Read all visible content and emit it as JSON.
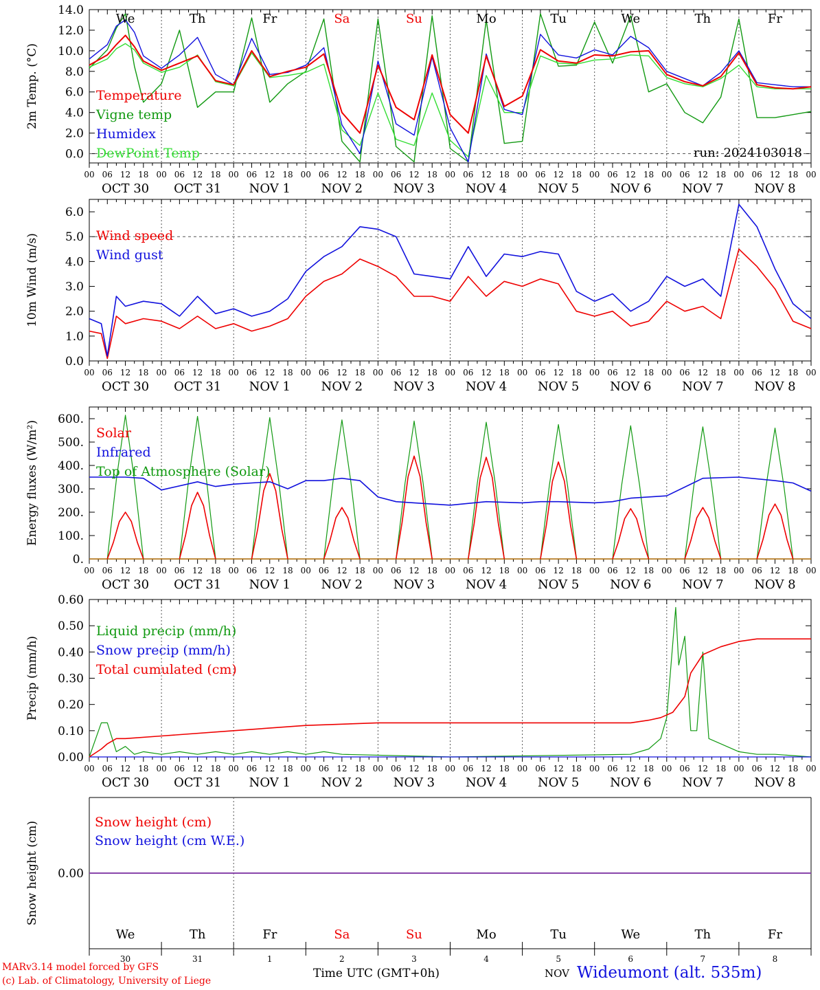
{
  "colors": {
    "red": "#ee0000",
    "green": "#119911",
    "blue": "#1111dd",
    "lightgreen": "#33dd33",
    "purple": "#8844aa",
    "grid": "#555555"
  },
  "days": [
    "We",
    "Th",
    "Fr",
    "Sa",
    "Su",
    "Mo",
    "Tu",
    "We",
    "Th",
    "Fr"
  ],
  "dates": [
    "OCT 30",
    "OCT 31",
    "NOV  1",
    "NOV  2",
    "NOV  3",
    "NOV  4",
    "NOV  5",
    "NOV  6",
    "NOV  7",
    "NOV  8"
  ],
  "hour_labels": [
    "00",
    "06",
    "12",
    "18"
  ],
  "last_hour_label": "00",
  "day_numbers": [
    "30",
    "31",
    "1",
    "2",
    "3",
    "4",
    "5",
    "6",
    "7",
    "8"
  ],
  "month_tag": "NOV",
  "footer": {
    "model": "MARv3.14 model forced by GFS",
    "copyright": "(c) Lab. of Climatology, University of Liege",
    "time_axis": "Time UTC (GMT+0h)",
    "station": "Wideumont (alt. 535m)"
  },
  "run_label": "run: 2024103018",
  "chart_data": [
    {
      "type": "line",
      "ylabel": "2m Temp. (°C)",
      "ylim": [
        -0.9,
        14.0
      ],
      "yticks": [
        "0.0",
        "2.0",
        "4.0",
        "6.0",
        "8.0",
        "10.0",
        "12.0",
        "14.0"
      ],
      "ytick_values": [
        0,
        2,
        4,
        6,
        8,
        10,
        12,
        14
      ],
      "reference_line": 0,
      "x_hours": [
        0,
        6,
        9,
        12,
        15,
        18,
        24,
        30,
        36,
        42,
        48,
        54,
        60,
        66,
        72,
        78,
        84,
        90,
        96,
        102,
        108,
        114,
        120,
        126,
        132,
        138,
        144,
        150,
        156,
        162,
        168,
        174,
        180,
        186,
        192,
        198,
        204,
        210,
        216,
        222,
        228,
        234,
        240
      ],
      "series": [
        {
          "name": "Temperature",
          "color": "red",
          "values": [
            8.6,
            9.6,
            10.6,
            11.5,
            10.4,
            9.0,
            8.1,
            8.8,
            9.5,
            7.1,
            6.7,
            10.0,
            7.5,
            8.0,
            8.4,
            9.7,
            4.0,
            2.0,
            8.6,
            4.5,
            3.3,
            9.6,
            3.8,
            2.0,
            9.5,
            4.6,
            5.6,
            10.1,
            9.0,
            8.8,
            9.6,
            9.5,
            9.9,
            10.0,
            7.7,
            7.0,
            6.6,
            7.5,
            9.8,
            6.7,
            6.4,
            6.3,
            6.5
          ]
        },
        {
          "name": "Vigne temp",
          "color": "green",
          "values": [
            8.3,
            10.1,
            12.2,
            13.6,
            8.5,
            5.0,
            6.8,
            12.0,
            4.5,
            6.0,
            6.0,
            13.2,
            5.0,
            6.8,
            8.0,
            13.1,
            1.2,
            -0.8,
            13.1,
            0.7,
            -0.8,
            13.4,
            0.5,
            -0.8,
            13.0,
            1.0,
            1.2,
            13.6,
            8.5,
            8.6,
            12.8,
            8.8,
            13.4,
            6.0,
            6.8,
            4.0,
            3.0,
            5.5,
            13.1,
            3.5,
            3.5,
            3.8,
            4.1
          ]
        },
        {
          "name": "Humidex",
          "color": "blue",
          "values": [
            9.2,
            10.6,
            12.4,
            13.0,
            11.8,
            9.5,
            8.3,
            9.6,
            11.3,
            7.7,
            6.7,
            11.2,
            7.7,
            7.9,
            8.6,
            10.3,
            2.8,
            0.0,
            9.0,
            2.9,
            1.8,
            9.4,
            2.5,
            -0.8,
            9.7,
            4.3,
            3.8,
            11.6,
            9.6,
            9.3,
            10.1,
            9.6,
            11.4,
            10.3,
            8.0,
            7.3,
            6.6,
            7.9,
            10.0,
            6.9,
            6.7,
            6.5,
            6.5
          ]
        },
        {
          "name": "DewPoint Temp",
          "color": "lightgreen",
          "values": [
            8.4,
            9.2,
            10.2,
            10.7,
            10.1,
            8.8,
            7.9,
            8.4,
            9.6,
            7.0,
            6.6,
            9.8,
            7.4,
            7.6,
            7.9,
            8.7,
            2.3,
            0.8,
            5.9,
            1.4,
            0.8,
            5.9,
            1.3,
            -0.3,
            7.6,
            4.0,
            4.0,
            9.5,
            8.8,
            8.7,
            9.1,
            9.2,
            9.6,
            9.5,
            7.4,
            6.8,
            6.5,
            7.3,
            8.6,
            6.5,
            6.3,
            6.3,
            6.3
          ]
        }
      ]
    },
    {
      "type": "line",
      "ylabel": "10m Wind (m/s)",
      "ylim": [
        0,
        6.5
      ],
      "yticks": [
        "0.0",
        "1.0",
        "2.0",
        "3.0",
        "4.0",
        "5.0",
        "6.0"
      ],
      "ytick_values": [
        0,
        1,
        2,
        3,
        4,
        5,
        6
      ],
      "reference_line": 5,
      "x_hours": [
        0,
        4,
        6,
        9,
        12,
        18,
        24,
        30,
        36,
        42,
        48,
        54,
        60,
        66,
        72,
        78,
        84,
        90,
        96,
        102,
        108,
        114,
        120,
        126,
        132,
        138,
        144,
        150,
        156,
        162,
        168,
        174,
        180,
        186,
        192,
        198,
        204,
        210,
        216,
        222,
        228,
        234,
        240
      ],
      "series": [
        {
          "name": "Wind speed",
          "color": "red",
          "values": [
            1.2,
            1.1,
            0.1,
            1.8,
            1.5,
            1.7,
            1.6,
            1.3,
            1.8,
            1.3,
            1.5,
            1.2,
            1.4,
            1.7,
            2.6,
            3.2,
            3.5,
            4.1,
            3.8,
            3.4,
            2.6,
            2.6,
            2.4,
            3.4,
            2.6,
            3.2,
            3.0,
            3.3,
            3.1,
            2.0,
            1.8,
            2.0,
            1.4,
            1.6,
            2.4,
            2.0,
            2.2,
            1.7,
            4.5,
            3.8,
            2.9,
            1.6,
            1.3
          ]
        },
        {
          "name": "Wind gust",
          "color": "blue",
          "values": [
            1.7,
            1.5,
            0.2,
            2.6,
            2.2,
            2.4,
            2.3,
            1.8,
            2.6,
            1.9,
            2.1,
            1.8,
            2.0,
            2.5,
            3.6,
            4.2,
            4.6,
            5.4,
            5.3,
            5.0,
            3.5,
            3.4,
            3.3,
            4.6,
            3.4,
            4.3,
            4.2,
            4.4,
            4.3,
            2.8,
            2.4,
            2.7,
            2.0,
            2.4,
            3.4,
            3.0,
            3.3,
            2.6,
            6.3,
            5.4,
            3.7,
            2.3,
            1.7
          ]
        }
      ]
    },
    {
      "type": "line",
      "ylabel": "Energy fluxes (W/m²)",
      "ylim": [
        0,
        650
      ],
      "yticks": [
        "0.",
        "100.",
        "200.",
        "300.",
        "400.",
        "500.",
        "600."
      ],
      "ytick_values": [
        0,
        100,
        200,
        300,
        400,
        500,
        600
      ],
      "series": [
        {
          "name": "Solar",
          "color": "red",
          "daily_peak": [
            200,
            285,
            365,
            220,
            440,
            435,
            415,
            215,
            220,
            235
          ]
        },
        {
          "name": "Infrared",
          "color": "blue",
          "x_hours": [
            0,
            12,
            18,
            24,
            36,
            42,
            48,
            60,
            66,
            72,
            78,
            84,
            90,
            96,
            102,
            108,
            120,
            132,
            144,
            150,
            156,
            168,
            174,
            180,
            192,
            204,
            216,
            228,
            234,
            240
          ],
          "values": [
            350,
            350,
            345,
            295,
            330,
            310,
            320,
            330,
            300,
            335,
            335,
            345,
            335,
            265,
            245,
            240,
            230,
            245,
            240,
            245,
            245,
            240,
            245,
            260,
            270,
            345,
            350,
            335,
            325,
            290
          ]
        },
        {
          "name": "Top of Atmosphere (Solar)",
          "color": "green",
          "daily_peak": [
            615,
            610,
            605,
            595,
            590,
            585,
            575,
            570,
            565,
            560
          ]
        }
      ]
    },
    {
      "type": "line",
      "ylabel": "Precip (mm/h)",
      "ylim": [
        0,
        0.6
      ],
      "yticks": [
        "0.00",
        "0.10",
        "0.20",
        "0.30",
        "0.40",
        "0.50",
        "0.60"
      ],
      "ytick_values": [
        0,
        0.1,
        0.2,
        0.3,
        0.4,
        0.5,
        0.6
      ],
      "series": [
        {
          "name": "Liquid precip (mm/h)",
          "color": "green",
          "x_hours": [
            0,
            4,
            6,
            9,
            12,
            15,
            18,
            24,
            30,
            36,
            42,
            48,
            54,
            60,
            66,
            72,
            78,
            84,
            120,
            180,
            186,
            190,
            192,
            195,
            196,
            198,
            200,
            202,
            204,
            206,
            210,
            216,
            222,
            228,
            240
          ],
          "values": [
            0,
            0.13,
            0.13,
            0.02,
            0.04,
            0.01,
            0.02,
            0.01,
            0.02,
            0.01,
            0.02,
            0.01,
            0.02,
            0.01,
            0.02,
            0.01,
            0.02,
            0.01,
            0,
            0.01,
            0.03,
            0.07,
            0.15,
            0.57,
            0.35,
            0.46,
            0.1,
            0.1,
            0.4,
            0.07,
            0.05,
            0.02,
            0.01,
            0.01,
            0
          ]
        },
        {
          "name": "Snow precip (mm/h)",
          "color": "blue",
          "x_hours": [
            0,
            240
          ],
          "values": [
            0,
            0
          ]
        },
        {
          "name": "Total cumulated (cm)",
          "color": "red",
          "x_hours": [
            0,
            4,
            6,
            9,
            12,
            24,
            48,
            72,
            96,
            120,
            150,
            180,
            186,
            190,
            194,
            198,
            200,
            204,
            210,
            216,
            222,
            228,
            240
          ],
          "values": [
            0,
            0.03,
            0.05,
            0.07,
            0.07,
            0.08,
            0.1,
            0.12,
            0.13,
            0.13,
            0.13,
            0.13,
            0.14,
            0.15,
            0.17,
            0.23,
            0.32,
            0.39,
            0.42,
            0.44,
            0.45,
            0.45,
            0.45
          ]
        }
      ]
    },
    {
      "type": "line",
      "ylabel": "Snow height (cm)",
      "yticks": [
        "0.00"
      ],
      "series": [
        {
          "name": "Snow height (cm)",
          "color": "red",
          "value": 0
        },
        {
          "name": "Snow height (cm W.E.)",
          "color": "blue",
          "value": 0
        }
      ]
    }
  ]
}
